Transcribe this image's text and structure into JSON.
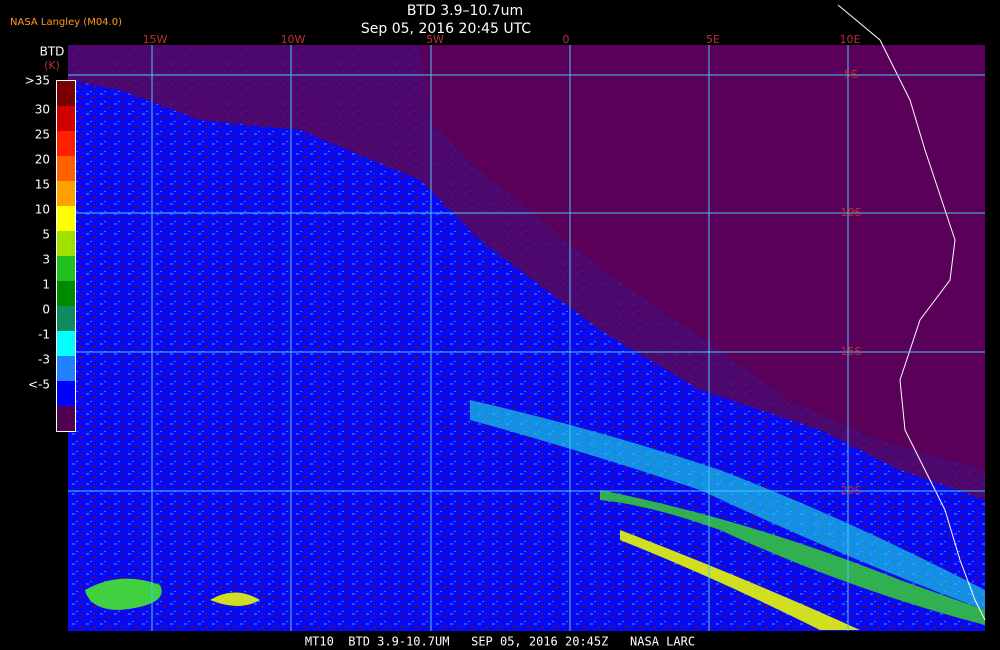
{
  "header": {
    "source": "NASA Langley (M04.0)",
    "title": "BTD 3.9–10.7um",
    "subtitle": "Sep 05, 2016 20:45 UTC"
  },
  "colorbar": {
    "title": "BTD",
    "unit": "(K)",
    "labels": [
      ">35",
      "30",
      "25",
      "20",
      "15",
      "10",
      "5",
      "3",
      "1",
      "0",
      "-1",
      "-3",
      "<-5"
    ]
  },
  "map": {
    "lon_labels": [
      "15W",
      "10W",
      "5W",
      "0",
      "5E",
      "10E"
    ],
    "lat_labels": [
      "5S",
      "10S",
      "15S",
      "20S"
    ]
  },
  "footer": {
    "text": "MT10  BTD 3.9-10.7UM   SEP 05, 2016 20:45Z   NASA LARC"
  }
}
